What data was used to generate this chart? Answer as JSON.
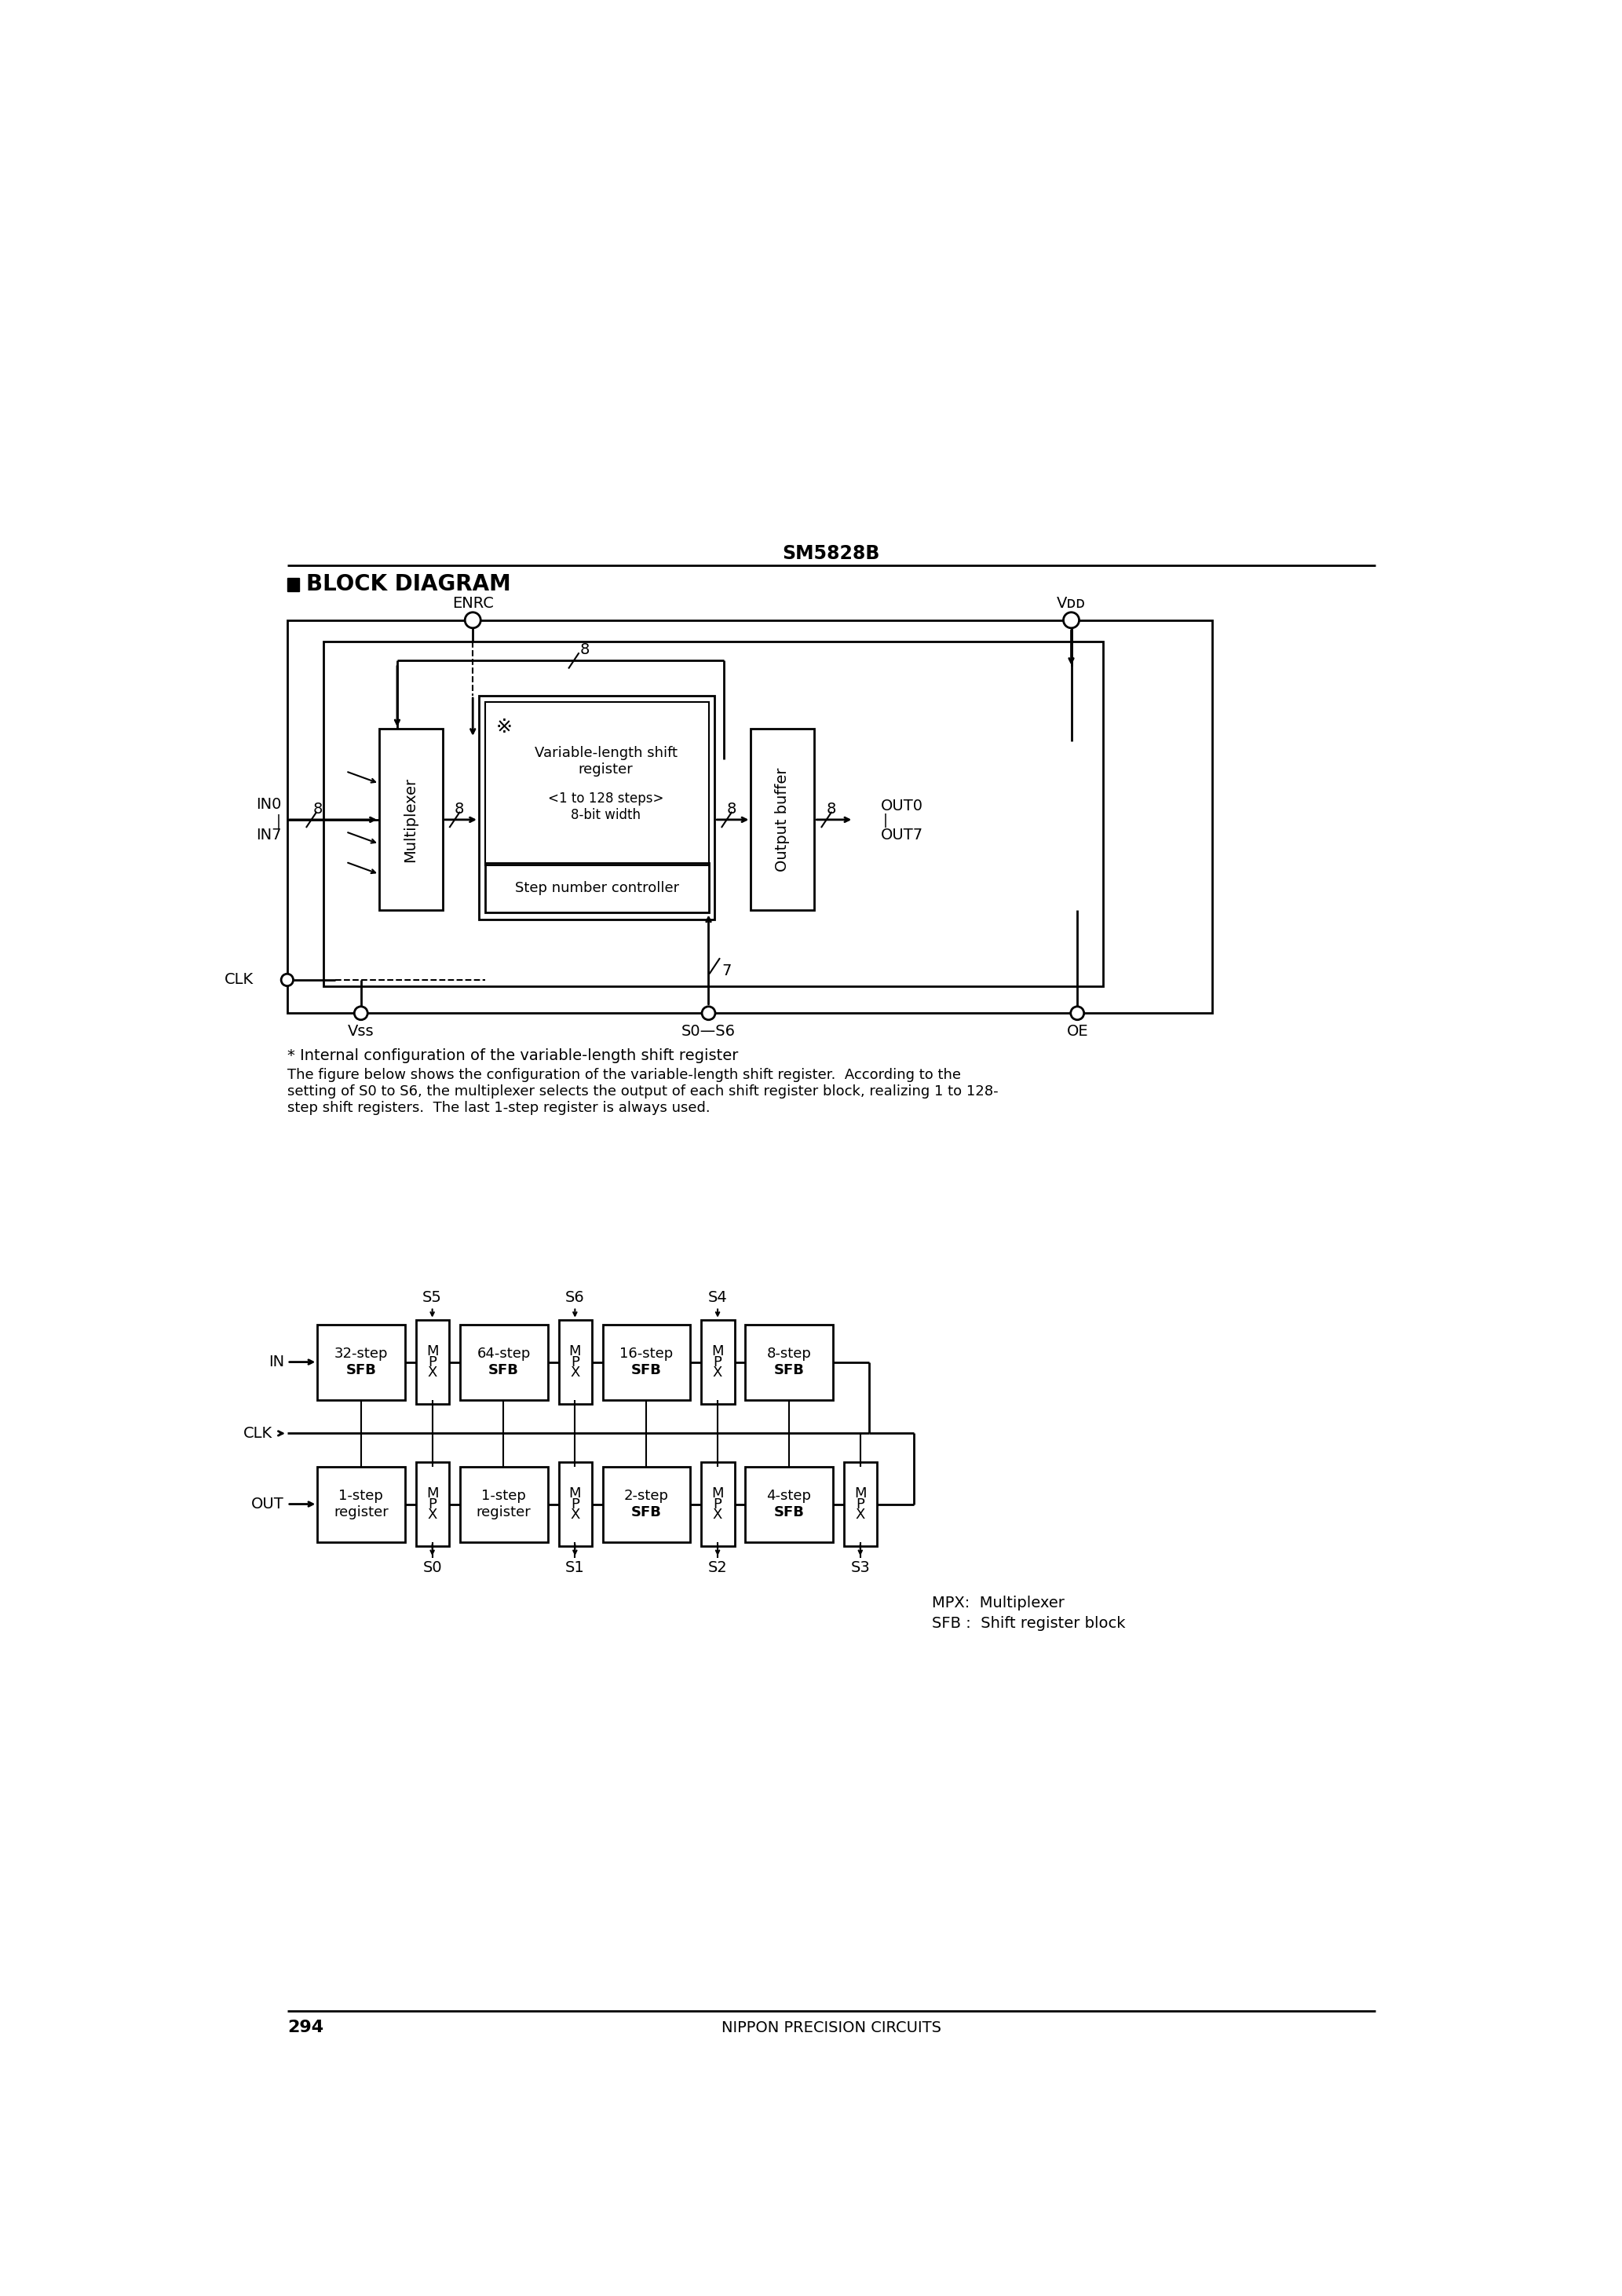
{
  "page_title": "SM5828B",
  "page_number": "294",
  "footer_text": "NIPPON PRECISION CIRCUITS",
  "section_title": "BLOCK DIAGRAM",
  "note_star": "* Internal configuration of the variable-length shift register",
  "note_line1": "The figure below shows the configuration of the variable-length shift register.  According to the",
  "note_line2": "setting of S0 to S6, the multiplexer selects the output of each shift register block, realizing 1 to 128-",
  "note_line3": "step shift registers.  The last 1-step register is always used.",
  "legend_mpx": "MPX:  Multiplexer",
  "legend_sfb": "SFB :  Shift register block"
}
